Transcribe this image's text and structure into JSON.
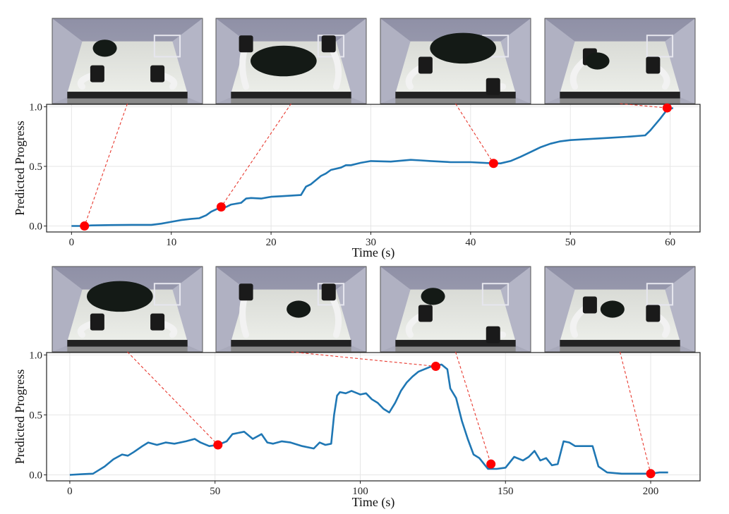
{
  "figure": {
    "panels": [
      {
        "xlabel": "Time (s)",
        "ylabel": "Predicted Progress",
        "thumbnails": [
          "robot-frame-start",
          "robot-frame-lift",
          "robot-frame-fold",
          "robot-frame-place"
        ]
      },
      {
        "xlabel": "Time (s)",
        "ylabel": "Predicted Progress",
        "thumbnails": [
          "robot-frame-spread",
          "robot-frame-grab",
          "robot-frame-drop",
          "robot-frame-end"
        ]
      }
    ]
  },
  "colors": {
    "line": "#1f77b4",
    "marker": "#ff0000",
    "connector": "#e8392f",
    "grid": "#e6e6e6"
  },
  "chart_data": [
    {
      "type": "line",
      "title": "",
      "xlabel": "Time (s)",
      "ylabel": "Predicted Progress",
      "xlim": [
        -2.5,
        63
      ],
      "ylim": [
        -0.05,
        1.02
      ],
      "xticks": [
        0,
        10,
        20,
        30,
        40,
        50,
        60
      ],
      "yticks": [
        0.0,
        0.5,
        1.0
      ],
      "grid": true,
      "series": [
        {
          "x": [
            0,
            1,
            2,
            4,
            6,
            8,
            9,
            10,
            11,
            12,
            12.8,
            13.5,
            14,
            14.5,
            15,
            15.5,
            16,
            17,
            17.5,
            18,
            19,
            20,
            21,
            22,
            23,
            23.5,
            24,
            25,
            25.5,
            26,
            27,
            27.5,
            28,
            29,
            30,
            32,
            34,
            35,
            36,
            38,
            40,
            42.3,
            43,
            44,
            45,
            46,
            47,
            48,
            49,
            50,
            52,
            54,
            56,
            57.5,
            58,
            59,
            59.7,
            60.3
          ],
          "y": [
            0.0,
            0.0,
            0.005,
            0.008,
            0.01,
            0.01,
            0.02,
            0.035,
            0.05,
            0.06,
            0.065,
            0.09,
            0.12,
            0.14,
            0.155,
            0.16,
            0.18,
            0.195,
            0.23,
            0.235,
            0.23,
            0.245,
            0.25,
            0.255,
            0.26,
            0.33,
            0.35,
            0.42,
            0.44,
            0.47,
            0.49,
            0.51,
            0.51,
            0.53,
            0.545,
            0.54,
            0.555,
            0.55,
            0.545,
            0.535,
            0.535,
            0.525,
            0.525,
            0.545,
            0.58,
            0.62,
            0.66,
            0.69,
            0.71,
            0.72,
            0.73,
            0.74,
            0.75,
            0.76,
            0.8,
            0.9,
            0.975,
            0.99
          ]
        }
      ],
      "highlighted_points": [
        {
          "x": 1.3,
          "y": 0.0
        },
        {
          "x": 15.0,
          "y": 0.16
        },
        {
          "x": 42.3,
          "y": 0.525
        },
        {
          "x": 59.7,
          "y": 0.99
        }
      ]
    },
    {
      "type": "line",
      "title": "",
      "xlabel": "Time (s)",
      "ylabel": "Predicted Progress",
      "xlim": [
        -8,
        217
      ],
      "ylim": [
        -0.05,
        1.02
      ],
      "xticks": [
        0,
        50,
        100,
        150,
        200
      ],
      "yticks": [
        0.0,
        0.5,
        1.0
      ],
      "grid": true,
      "series": [
        {
          "x": [
            0,
            4,
            8,
            10,
            12,
            15,
            18,
            20,
            22,
            25,
            27,
            30,
            33,
            36,
            40,
            43,
            45,
            48,
            51,
            54,
            56,
            58,
            60,
            63,
            66,
            68,
            70,
            73,
            76,
            80,
            84,
            86,
            88,
            90,
            91,
            92,
            93,
            95,
            97,
            100,
            102,
            104,
            106,
            108,
            110,
            112,
            114,
            116,
            118,
            120,
            122,
            124,
            126,
            128,
            130,
            131,
            133,
            135,
            137,
            139,
            141,
            143,
            144,
            147,
            150,
            153,
            156,
            158,
            160,
            162,
            164,
            166,
            168,
            170,
            172,
            174,
            176,
            178,
            180,
            182,
            185,
            190,
            195,
            200,
            203,
            206
          ],
          "y": [
            0.0,
            0.005,
            0.01,
            0.04,
            0.07,
            0.13,
            0.17,
            0.16,
            0.19,
            0.24,
            0.27,
            0.25,
            0.27,
            0.26,
            0.28,
            0.3,
            0.27,
            0.24,
            0.25,
            0.28,
            0.34,
            0.35,
            0.36,
            0.3,
            0.34,
            0.27,
            0.26,
            0.28,
            0.27,
            0.24,
            0.22,
            0.27,
            0.25,
            0.26,
            0.5,
            0.66,
            0.69,
            0.68,
            0.7,
            0.67,
            0.68,
            0.63,
            0.6,
            0.55,
            0.52,
            0.6,
            0.7,
            0.77,
            0.82,
            0.86,
            0.88,
            0.9,
            0.91,
            0.92,
            0.88,
            0.72,
            0.64,
            0.45,
            0.3,
            0.17,
            0.14,
            0.08,
            0.05,
            0.05,
            0.06,
            0.15,
            0.12,
            0.15,
            0.2,
            0.12,
            0.14,
            0.08,
            0.09,
            0.28,
            0.27,
            0.24,
            0.24,
            0.24,
            0.24,
            0.07,
            0.02,
            0.01,
            0.01,
            0.01,
            0.02,
            0.02
          ]
        }
      ],
      "highlighted_points": [
        {
          "x": 51,
          "y": 0.25
        },
        {
          "x": 126,
          "y": 0.905
        },
        {
          "x": 145,
          "y": 0.09
        },
        {
          "x": 200,
          "y": 0.01
        }
      ]
    }
  ]
}
